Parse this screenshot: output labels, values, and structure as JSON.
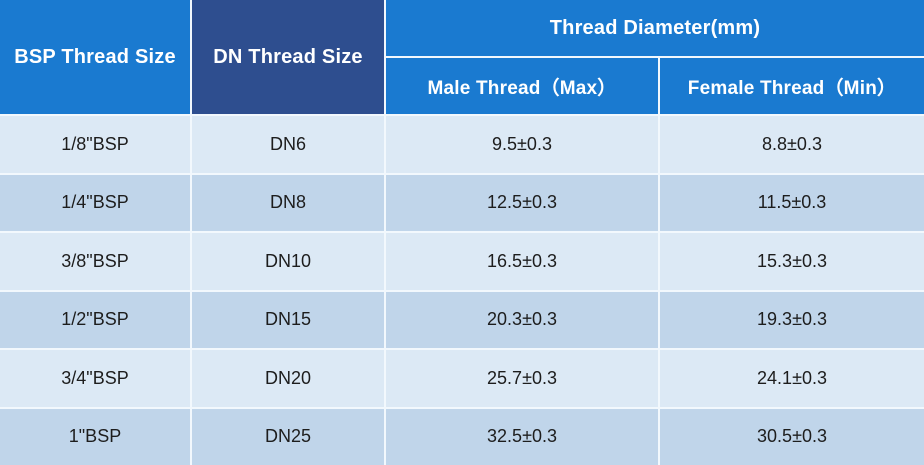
{
  "table": {
    "headers": {
      "bsp": "BSP Thread Size",
      "dn": "DN Thread Size",
      "diameter_group": "Thread Diameter(mm)",
      "male": "Male Thread（Max）",
      "female": "Female Thread（Min）"
    },
    "rows": [
      {
        "bsp": "1/8\"BSP",
        "dn": "DN6",
        "male": "9.5±0.3",
        "female": "8.8±0.3"
      },
      {
        "bsp": "1/4\"BSP",
        "dn": "DN8",
        "male": "12.5±0.3",
        "female": "11.5±0.3"
      },
      {
        "bsp": "3/8\"BSP",
        "dn": "DN10",
        "male": "16.5±0.3",
        "female": "15.3±0.3"
      },
      {
        "bsp": "1/2\"BSP",
        "dn": "DN15",
        "male": "20.3±0.3",
        "female": "19.3±0.3"
      },
      {
        "bsp": "3/4\"BSP",
        "dn": "DN20",
        "male": "25.7±0.3",
        "female": "24.1±0.3"
      },
      {
        "bsp": "1\"BSP",
        "dn": "DN25",
        "male": "32.5±0.3",
        "female": "30.5±0.3"
      }
    ],
    "colors": {
      "header_blue": "#1a7ad0",
      "header_navy": "#2e4e8f",
      "row_light": "#dce9f5",
      "row_shaded": "#c0d5ea",
      "header_text": "#ffffff",
      "body_text": "#1d1d1d",
      "divider": "#f2f8fd"
    }
  }
}
